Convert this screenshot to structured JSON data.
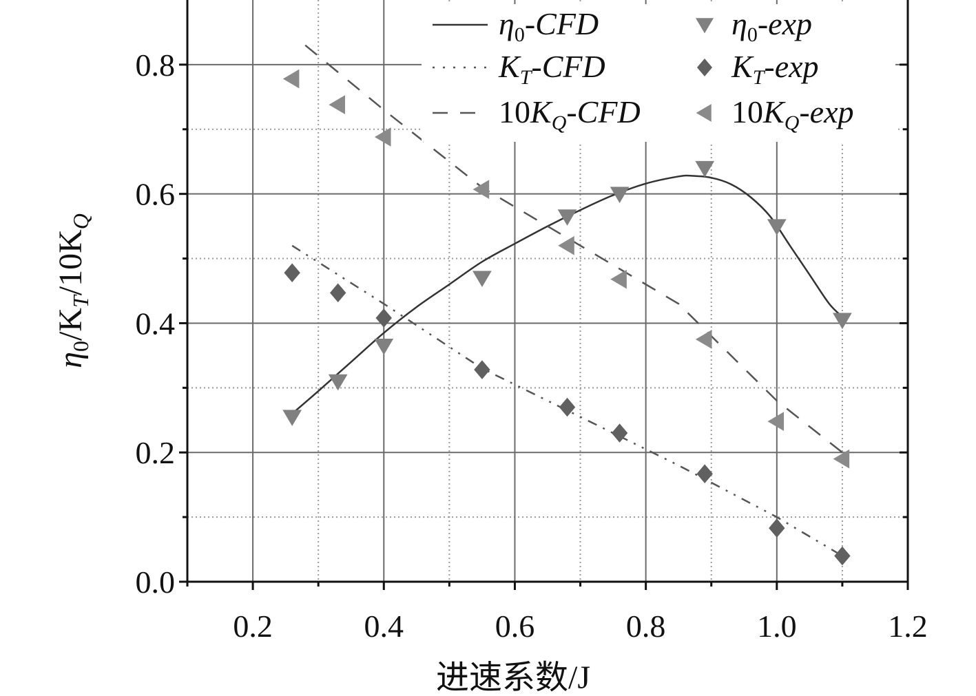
{
  "chart_data": {
    "type": "line",
    "title": "",
    "xlabel": "进速系数/J",
    "ylabel": {
      "eta": "η",
      "eta_sub": "0",
      "sep1": "/K",
      "kt_sub": "T",
      "sep2": "/10K",
      "kq_sub": "Q"
    },
    "xlim": [
      0.1,
      1.2
    ],
    "ylim": [
      0.0,
      0.9
    ],
    "xticks": [
      0.2,
      0.4,
      0.6,
      0.8,
      1.0,
      1.2
    ],
    "xtick_labels": [
      "0.2",
      "0.4",
      "0.6",
      "0.8",
      "1.0",
      "1.2"
    ],
    "yticks": [
      0.0,
      0.2,
      0.4,
      0.6,
      0.8
    ],
    "ytick_labels": [
      "0.0",
      "0.2",
      "0.4",
      "0.6",
      "0.8"
    ],
    "grid": true,
    "legend_position": "top-right",
    "legend": [
      {
        "key": "eta_cfd",
        "prefix": "",
        "base": "η",
        "sub": "0",
        "suffix": "-CFD"
      },
      {
        "key": "eta_exp",
        "prefix": "",
        "base": "η",
        "sub": "0",
        "suffix": "-exp"
      },
      {
        "key": "kt_cfd",
        "prefix": "",
        "base": "K",
        "sub": "T",
        "suffix": "-CFD"
      },
      {
        "key": "kt_exp",
        "prefix": "",
        "base": "K",
        "sub": "T",
        "suffix": "-exp"
      },
      {
        "key": "kq_cfd",
        "prefix": "10",
        "base": "K",
        "sub": "Q",
        "suffix": "-CFD"
      },
      {
        "key": "kq_exp",
        "prefix": "10",
        "base": "K",
        "sub": "Q",
        "suffix": "-exp"
      }
    ],
    "series": [
      {
        "key": "eta_cfd",
        "kind": "line",
        "style": "solid",
        "color": "#333333",
        "x": [
          0.26,
          0.3,
          0.35,
          0.4,
          0.45,
          0.5,
          0.55,
          0.6,
          0.65,
          0.7,
          0.75,
          0.8,
          0.85,
          0.87,
          0.9,
          0.93,
          0.96,
          0.99,
          1.02,
          1.05,
          1.08,
          1.1
        ],
        "y": [
          0.26,
          0.295,
          0.34,
          0.385,
          0.425,
          0.46,
          0.495,
          0.523,
          0.55,
          0.575,
          0.598,
          0.616,
          0.627,
          0.628,
          0.625,
          0.615,
          0.595,
          0.565,
          0.52,
          0.475,
          0.43,
          0.41
        ]
      },
      {
        "key": "kt_cfd",
        "kind": "line",
        "style": "dashdotdot",
        "color": "#555555",
        "x": [
          0.26,
          0.4,
          0.55,
          0.7,
          0.85,
          1.0,
          1.1
        ],
        "y": [
          0.52,
          0.43,
          0.33,
          0.255,
          0.18,
          0.1,
          0.04
        ]
      },
      {
        "key": "kq_cfd",
        "kind": "line",
        "style": "dashed",
        "color": "#555555",
        "x": [
          0.28,
          0.4,
          0.55,
          0.7,
          0.85,
          1.0,
          1.1
        ],
        "y": [
          0.83,
          0.73,
          0.61,
          0.52,
          0.43,
          0.28,
          0.2
        ]
      },
      {
        "key": "eta_exp",
        "kind": "scatter",
        "marker": "triangle-down",
        "color": "#808080",
        "x": [
          0.26,
          0.33,
          0.4,
          0.55,
          0.68,
          0.76,
          0.89,
          1.0,
          1.1
        ],
        "y": [
          0.255,
          0.31,
          0.365,
          0.47,
          0.565,
          0.6,
          0.64,
          0.55,
          0.405
        ]
      },
      {
        "key": "kt_exp",
        "kind": "scatter",
        "marker": "diamond",
        "color": "#606060",
        "x": [
          0.26,
          0.33,
          0.4,
          0.55,
          0.68,
          0.76,
          0.89,
          1.0,
          1.1
        ],
        "y": [
          0.478,
          0.447,
          0.408,
          0.328,
          0.27,
          0.23,
          0.167,
          0.083,
          0.04
        ]
      },
      {
        "key": "kq_exp",
        "kind": "scatter",
        "marker": "triangle-left",
        "color": "#8a8a8a",
        "x": [
          0.26,
          0.33,
          0.4,
          0.55,
          0.68,
          0.76,
          0.89,
          1.0,
          1.1
        ],
        "y": [
          0.778,
          0.738,
          0.688,
          0.607,
          0.52,
          0.468,
          0.375,
          0.248,
          0.19
        ]
      }
    ]
  }
}
